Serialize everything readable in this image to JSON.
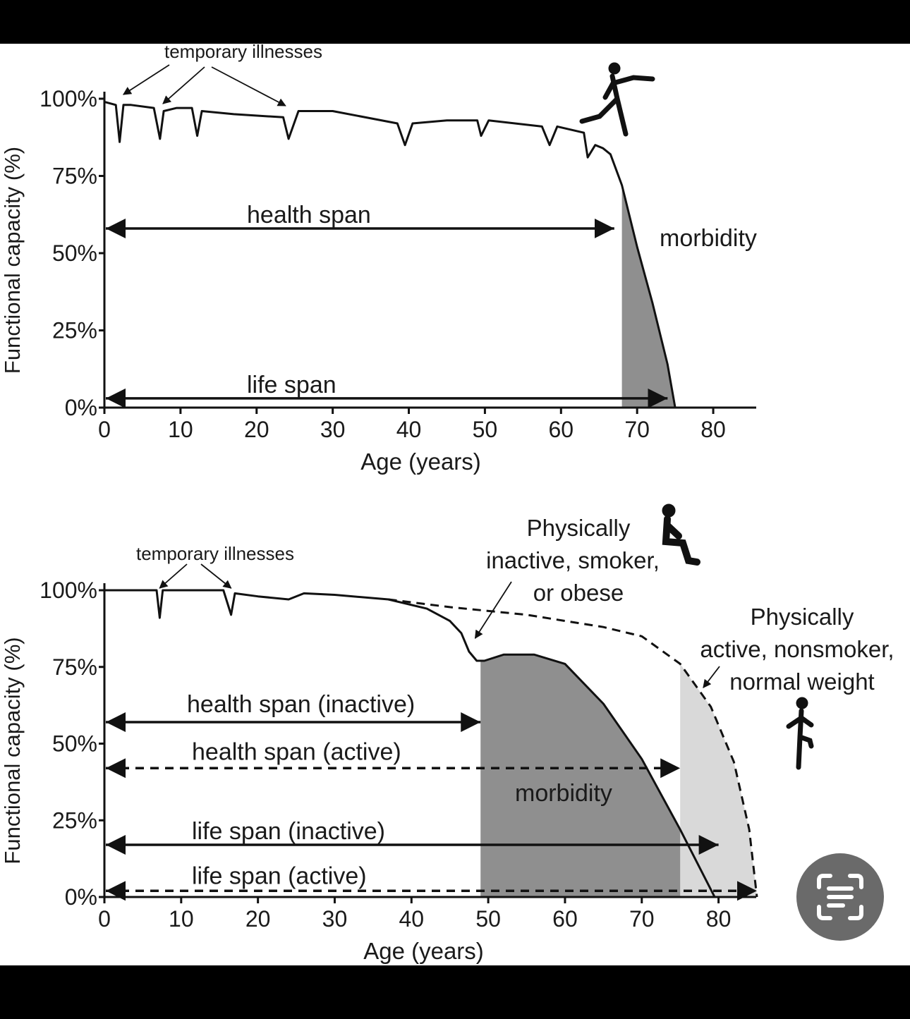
{
  "chart_data": [
    {
      "type": "line",
      "xlabel": "Age (years)",
      "ylabel": "Functional capacity (%)",
      "xlim": [
        0,
        85
      ],
      "ylim": [
        0,
        100
      ],
      "x_ticks": [
        "0",
        "10",
        "20",
        "30",
        "40",
        "50",
        "60",
        "70",
        "80"
      ],
      "y_ticks": [
        "0%",
        "25%",
        "50%",
        "75%",
        "100%"
      ],
      "series": [
        {
          "x": [
            0,
            1.5,
            2,
            2.5,
            3.5,
            6.5,
            7.3,
            7.8,
            9.5,
            11.5,
            12.2,
            12.8,
            17,
            23.5,
            24.2,
            25.5,
            30,
            38.5,
            39.5,
            40.5,
            45,
            49,
            49.5,
            50.5,
            57.5,
            58.5,
            59.5,
            63,
            63.5,
            64.5,
            65.5,
            66.5,
            68,
            70,
            72,
            74,
            75
          ],
          "y": [
            99,
            98,
            86,
            98,
            98,
            97,
            87,
            96,
            97,
            97,
            88,
            96,
            95,
            94,
            87,
            96,
            96,
            92,
            85,
            92,
            93,
            93,
            88,
            93,
            91,
            85,
            91,
            89,
            81,
            85,
            84,
            82,
            72,
            52,
            34,
            14,
            0
          ]
        }
      ],
      "shaded_regions": [
        {
          "from": 68,
          "label": "morbidity",
          "color": "#8f8f8f"
        }
      ],
      "annotations": {
        "illness_label": "temporary illnesses",
        "health_span": {
          "label": "health span",
          "from": 0,
          "to": 67,
          "y": 58
        },
        "life_span": {
          "label": "life span",
          "from": 0,
          "to": 74,
          "y": 3
        },
        "morbidity": "morbidity"
      }
    },
    {
      "type": "line",
      "xlabel": "Age (years)",
      "ylabel": "Functional capacity (%)",
      "xlim": [
        0,
        85
      ],
      "ylim": [
        0,
        100
      ],
      "x_ticks": [
        "0",
        "10",
        "20",
        "30",
        "40",
        "50",
        "60",
        "70",
        "80"
      ],
      "y_ticks": [
        "0%",
        "25%",
        "50%",
        "75%",
        "100%"
      ],
      "series": [
        {
          "name": "Physically inactive, smoker, or obese",
          "style": "solid",
          "x": [
            0,
            6.8,
            7.2,
            7.6,
            15.5,
            16.5,
            17,
            20,
            24,
            26,
            30,
            37,
            42,
            45,
            46.5,
            47.5,
            48.5,
            49.5,
            52,
            56,
            60,
            65,
            70,
            75,
            79.5
          ],
          "y": [
            100,
            100,
            91,
            100,
            100,
            92,
            99,
            98,
            97,
            99,
            98.5,
            97,
            94,
            90,
            86,
            80,
            77,
            77,
            79,
            79,
            76,
            63,
            45,
            22,
            0
          ]
        },
        {
          "name": "Physically active, nonsmoker, normal weight",
          "style": "dashed",
          "x": [
            37,
            45,
            55,
            65,
            70,
            75,
            79,
            82,
            84,
            85
          ],
          "y": [
            97,
            94.5,
            92,
            88,
            85,
            76,
            62,
            44,
            22,
            0
          ]
        }
      ],
      "shaded_regions": [
        {
          "from": 49,
          "label": "morbidity",
          "color": "#8f8f8f"
        },
        {
          "from": 75,
          "color": "#d9d9d9"
        }
      ],
      "annotations": {
        "illness_label": "temporary illnesses",
        "inactive_label": [
          "Physically",
          "inactive, smoker,",
          "or obese"
        ],
        "active_label": [
          "Physically",
          "active, nonsmoker,",
          "normal weight"
        ],
        "health_span_inactive": {
          "label": "health span (inactive)",
          "from": 0,
          "to": 49,
          "y": 57
        },
        "health_span_active": {
          "label": "health span (active)",
          "from": 0,
          "to": 75,
          "y": 42
        },
        "life_span_inactive": {
          "label": "life span (inactive)",
          "from": 0,
          "to": 80,
          "y": 17
        },
        "life_span_active": {
          "label": "life span (active)",
          "from": 0,
          "to": 85,
          "y": 2
        },
        "morbidity": "morbidity"
      }
    }
  ],
  "overlay": {
    "scan_button_icon": "text-scan-icon"
  }
}
